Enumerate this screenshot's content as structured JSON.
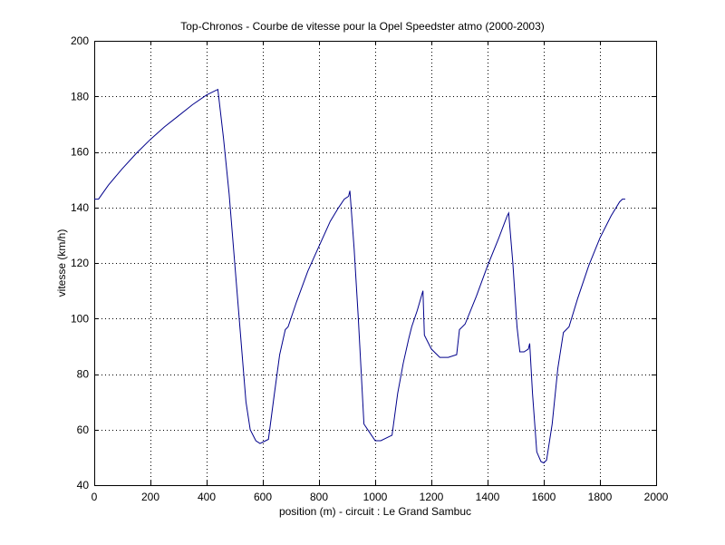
{
  "chart_data": {
    "type": "line",
    "title": "Top-Chronos - Courbe de vitesse pour la Opel Speedster atmo (2000-2003)",
    "xlabel": "position (m) - circuit : Le Grand Sambuc",
    "ylabel": "vitesse (km/h)",
    "xlim": [
      0,
      2000
    ],
    "ylim": [
      40,
      200
    ],
    "xticks": [
      0,
      200,
      400,
      600,
      800,
      1000,
      1200,
      1400,
      1600,
      1800,
      2000
    ],
    "yticks": [
      40,
      60,
      80,
      100,
      120,
      140,
      160,
      180,
      200
    ],
    "grid": true,
    "line_color": "#00008b",
    "series": [
      {
        "x": [
          0,
          15,
          50,
          100,
          150,
          200,
          250,
          300,
          350,
          400,
          440,
          460,
          480,
          500,
          520,
          540,
          555,
          575,
          590,
          600,
          620,
          640,
          660,
          680,
          690,
          720,
          760,
          800,
          840,
          870,
          890,
          905,
          910,
          925,
          940,
          960,
          980,
          1000,
          1020,
          1040,
          1060,
          1080,
          1100,
          1120,
          1130,
          1150,
          1170,
          1175,
          1200,
          1230,
          1260,
          1290,
          1300,
          1320,
          1360,
          1400,
          1440,
          1470,
          1475,
          1490,
          1505,
          1515,
          1530,
          1545,
          1550,
          1560,
          1575,
          1590,
          1600,
          1610,
          1630,
          1650,
          1670,
          1690,
          1720,
          1760,
          1800,
          1840,
          1870,
          1880,
          1890
        ],
        "y": [
          143,
          143,
          148,
          154,
          159.5,
          164.5,
          169,
          173,
          177,
          180.5,
          182.5,
          165,
          145,
          120,
          95,
          70,
          60,
          56,
          55,
          55.5,
          56.5,
          72,
          87,
          96,
          97,
          106,
          117,
          126,
          135,
          140,
          143,
          144,
          146,
          125,
          100,
          62,
          59,
          56,
          56,
          57,
          58,
          73,
          84,
          93,
          97,
          103,
          110,
          94,
          89,
          86,
          86,
          87,
          96,
          98,
          108,
          119,
          129,
          137,
          138,
          120,
          97,
          88,
          88,
          89,
          91,
          73,
          52,
          48.5,
          48,
          49,
          62,
          82,
          95,
          97,
          107,
          119,
          129,
          137,
          142,
          143,
          143
        ]
      }
    ]
  }
}
